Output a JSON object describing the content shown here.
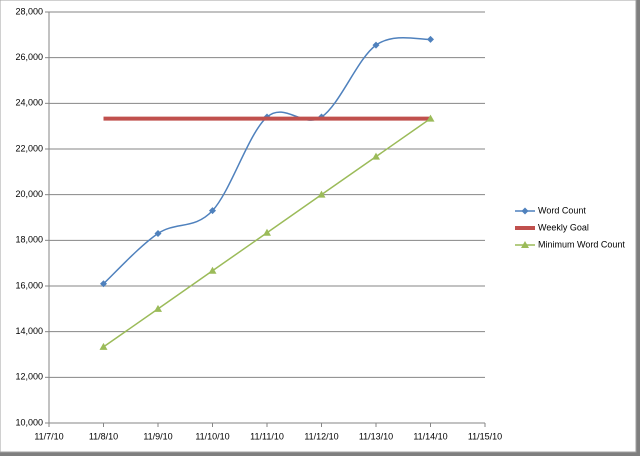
{
  "chart_data": {
    "type": "line",
    "x": [
      "11/8/10",
      "11/9/10",
      "11/10/10",
      "11/11/10",
      "11/12/10",
      "11/13/10",
      "11/14/10"
    ],
    "series": [
      {
        "name": "Word Count",
        "color": "#4f81bd",
        "marker": "diamond",
        "smooth": true,
        "values": [
          16100,
          18300,
          19300,
          23400,
          23400,
          26550,
          26800
        ]
      },
      {
        "name": "Weekly Goal",
        "color": "#c0504d",
        "marker": "none",
        "smooth": false,
        "values": [
          23333,
          23333,
          23333,
          23333,
          23333,
          23333,
          23333
        ]
      },
      {
        "name": "Minimum Word Count",
        "color": "#9bbb59",
        "marker": "triangle",
        "smooth": false,
        "values": [
          13333,
          15000,
          16667,
          18333,
          20000,
          21667,
          23333
        ]
      }
    ],
    "xlim": [
      "11/7/10",
      "11/15/10"
    ],
    "xticks": [
      "11/7/10",
      "11/8/10",
      "11/9/10",
      "11/10/10",
      "11/11/10",
      "11/12/10",
      "11/13/10",
      "11/14/10",
      "11/15/10"
    ],
    "ylim": [
      10000,
      28000
    ],
    "yticks": [
      {
        "value": 10000,
        "label": "10,000"
      },
      {
        "value": 12000,
        "label": "12,000"
      },
      {
        "value": 14000,
        "label": "14,000"
      },
      {
        "value": 16000,
        "label": "16,000"
      },
      {
        "value": 18000,
        "label": "18,000"
      },
      {
        "value": 20000,
        "label": "20,000"
      },
      {
        "value": 22000,
        "label": "22,000"
      },
      {
        "value": 24000,
        "label": "24,000"
      },
      {
        "value": 26000,
        "label": "26,000"
      },
      {
        "value": 28000,
        "label": "28,000"
      }
    ],
    "grid": true,
    "legend": "right"
  }
}
